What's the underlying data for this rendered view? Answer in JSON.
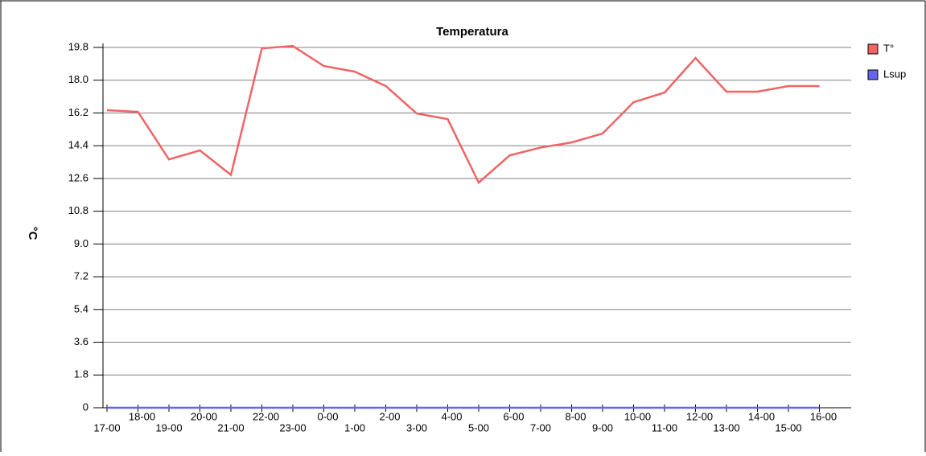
{
  "chart_data": {
    "type": "line",
    "title": "Temperatura",
    "y_label": "°C",
    "categories": [
      "17-00",
      "18-00",
      "19-00",
      "20-00",
      "21-00",
      "22-00",
      "23-00",
      "0-00",
      "1-00",
      "2-00",
      "3-00",
      "4-00",
      "5-00",
      "6-00",
      "7-00",
      "8-00",
      "9-00",
      "10-00",
      "11-00",
      "12-00",
      "13-00",
      "14-00",
      "15-00",
      "16-00"
    ],
    "series": [
      {
        "name": "T°",
        "color": "#f06464",
        "values": [
          16.35,
          16.26,
          13.65,
          14.14,
          12.8,
          19.75,
          19.88,
          18.78,
          18.47,
          17.68,
          16.17,
          15.86,
          12.37,
          13.87,
          14.3,
          14.58,
          15.07,
          16.79,
          17.32,
          19.22,
          17.37,
          17.37,
          17.68,
          17.68
        ]
      },
      {
        "name": "Lsup",
        "color": "#6464f0",
        "values": [
          0,
          0,
          0,
          0,
          0,
          0,
          0,
          0,
          0,
          0,
          0,
          0,
          0,
          0,
          0,
          0,
          0,
          0,
          0,
          0,
          0,
          0,
          0,
          0
        ]
      }
    ],
    "ylim": [
      0,
      19.8
    ],
    "yticks": [
      0,
      1.8,
      3.6,
      5.4,
      7.2,
      {
        "value": 9,
        "label": "9.0"
      },
      10.8,
      12.6,
      14.4,
      16.2,
      {
        "value": 18,
        "label": "18.0"
      },
      19.8
    ],
    "grid": true,
    "legend": "right"
  }
}
